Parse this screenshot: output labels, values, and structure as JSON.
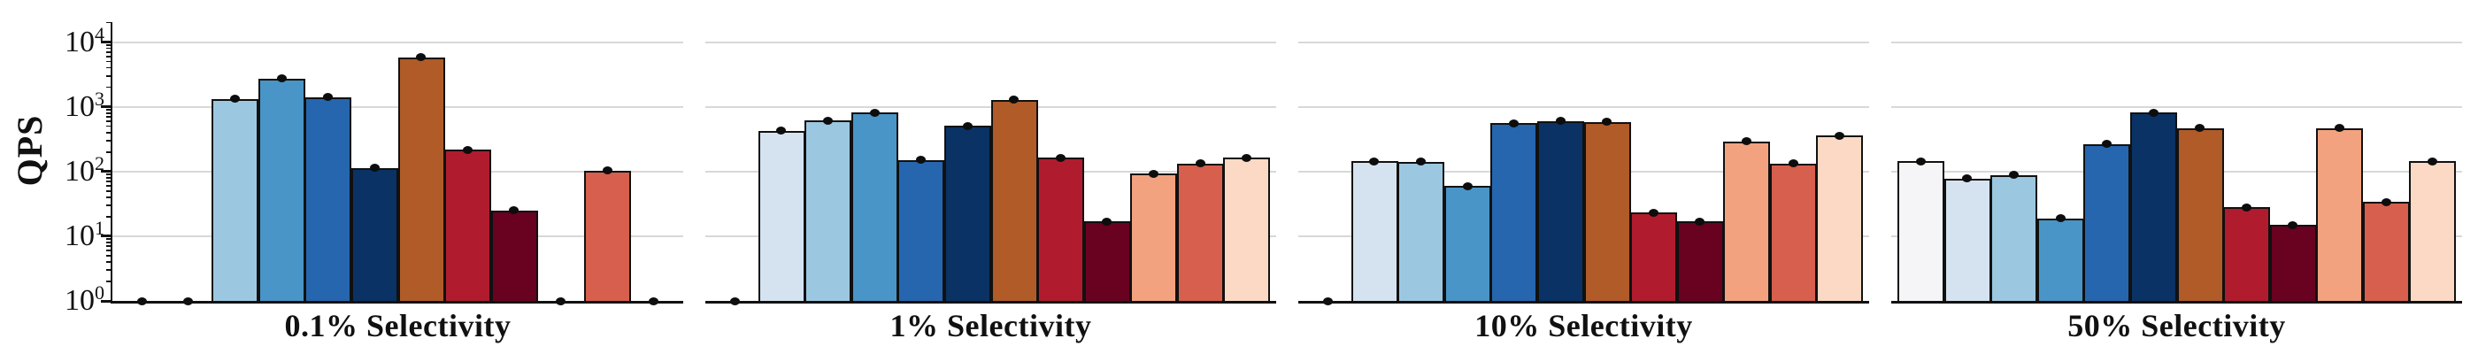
{
  "figure": {
    "ylabel": "QPS",
    "yscale": "log",
    "ylim": [
      1,
      20000
    ],
    "grid": true,
    "legend": "none",
    "background_color": "#ffffff",
    "gridline_color": "#d8d8d8",
    "axis_color": "#111111",
    "bar_edge_color": "#111111",
    "point_marker": "black-dot-at-bar-top",
    "marker_color": "#0d0d0d",
    "bar_colors": [
      "#f5f4f6",
      "#d5e3f0",
      "#9cc7e0",
      "#4995c7",
      "#2566ae",
      "#0a3264",
      "#b05b28",
      "#b01c2d",
      "#690120",
      "#f3a27f",
      "#d65f4d",
      "#fcd9c4"
    ],
    "yticks": [
      {
        "exp": "0",
        "label": "10^0"
      },
      {
        "exp": "1",
        "label": "10^1"
      },
      {
        "exp": "2",
        "label": "10^2"
      },
      {
        "exp": "3",
        "label": "10^3"
      },
      {
        "exp": "4",
        "label": "10^4"
      }
    ]
  },
  "chart_data": [
    {
      "type": "bar",
      "xlabel": "0.1% Selectivity",
      "yscale": "log",
      "ylim": [
        1,
        20000
      ],
      "values": [
        1,
        1,
        1320,
        2730,
        1410,
        113,
        5800,
        218,
        25,
        1,
        103,
        1
      ]
    },
    {
      "type": "bar",
      "xlabel": "1% Selectivity",
      "yscale": "log",
      "ylim": [
        1,
        20000
      ],
      "values": [
        1,
        425,
        610,
        815,
        150,
        510,
        1280,
        163,
        17,
        92,
        133,
        164
      ]
    },
    {
      "type": "bar",
      "xlabel": "10% Selectivity",
      "yscale": "log",
      "ylim": [
        1,
        20000
      ],
      "values": [
        1,
        143,
        141,
        60,
        555,
        600,
        580,
        23,
        17,
        293,
        133,
        358
      ]
    },
    {
      "type": "bar",
      "xlabel": "50% Selectivity",
      "yscale": "log",
      "ylim": [
        1,
        20000
      ],
      "values": [
        145,
        78,
        88,
        19,
        265,
        815,
        472,
        28,
        15,
        472,
        34,
        145
      ]
    }
  ]
}
